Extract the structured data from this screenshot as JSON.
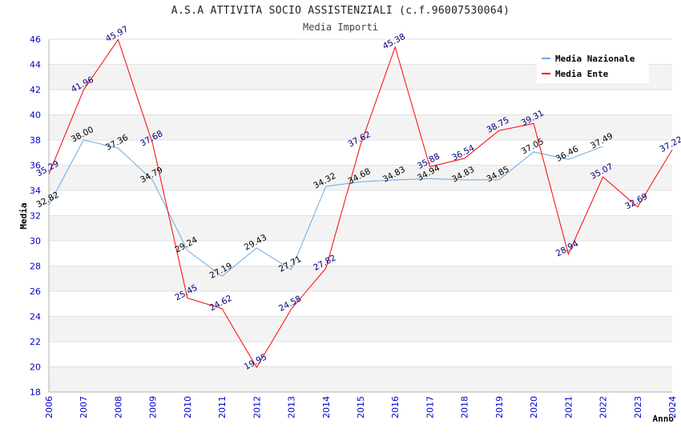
{
  "chart_data": {
    "type": "line",
    "title": "A.S.A ATTIVITA SOCIO ASSISTENZIALI (c.f.96007530064)",
    "subtitle": "Media Importi",
    "xlabel": "Anno",
    "ylabel": "Media",
    "ylim": [
      18,
      46
    ],
    "yticks": [
      18,
      20,
      22,
      24,
      26,
      28,
      30,
      32,
      34,
      36,
      38,
      40,
      42,
      44,
      46
    ],
    "categories": [
      "2006",
      "2007",
      "2008",
      "2009",
      "2010",
      "2011",
      "2012",
      "2013",
      "2014",
      "2015",
      "2016",
      "2017",
      "2018",
      "2019",
      "2020",
      "2021",
      "2022",
      "2023",
      "2024"
    ],
    "grid": "horizontal bands",
    "legend_position": "top-right",
    "series": [
      {
        "name": "Media Nazionale",
        "color": "#6aaae4",
        "label_color": "#000000",
        "values": [
          32.82,
          38.0,
          37.36,
          34.79,
          29.24,
          27.19,
          29.43,
          27.71,
          34.32,
          34.68,
          34.83,
          34.94,
          34.83,
          34.85,
          37.05,
          36.46,
          37.49,
          null,
          null
        ],
        "labels": [
          "32.82",
          "38.00",
          "37.36",
          "34.79",
          "29.24",
          "27.19",
          "29.43",
          "27.71",
          "34.32",
          "34.68",
          "34.83",
          "34.94",
          "34.83",
          "34.85",
          "37.05",
          "36.46",
          "37.49",
          null,
          null
        ]
      },
      {
        "name": "Media Ente",
        "color": "#ff0000",
        "label_color": "#000080",
        "values": [
          35.29,
          41.96,
          45.97,
          37.68,
          25.45,
          24.62,
          19.95,
          24.58,
          27.82,
          37.62,
          45.38,
          35.88,
          36.54,
          38.75,
          39.31,
          28.94,
          35.07,
          32.69,
          37.22
        ],
        "labels": [
          "35.29",
          "41.96",
          "45.97",
          "37.68",
          "25.45",
          "24.62",
          "19.95",
          "24.58",
          "27.82",
          "37.62",
          "45.38",
          "35.88",
          "36.54",
          "38.75",
          "39.31",
          "28.94",
          "35.07",
          "32.69",
          "37.22"
        ]
      }
    ]
  }
}
